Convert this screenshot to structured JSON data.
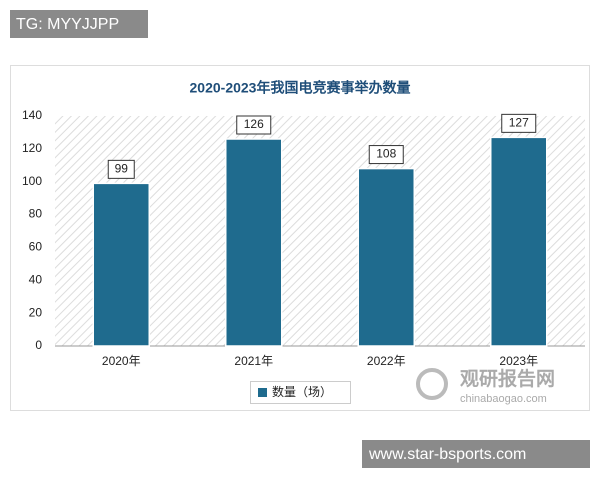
{
  "overlay": {
    "tag": "TG: MYYJJPP",
    "url": "www.star-bsports.com",
    "watermark": "观研报告网",
    "watermark_url": "chinabaogao.com"
  },
  "chart_data": {
    "type": "bar",
    "title": "2020-2023年我国电竞赛事举办数量",
    "categories": [
      "2020年",
      "2021年",
      "2022年",
      "2023年"
    ],
    "series": [
      {
        "name": "数量（场）",
        "color": "#1f6b8e",
        "values": [
          99,
          126,
          108,
          127
        ]
      }
    ],
    "ylim": [
      0,
      140
    ],
    "yticks": [
      0,
      20,
      40,
      60,
      80,
      100,
      120,
      140
    ],
    "grid": false,
    "legend": "bottom"
  }
}
